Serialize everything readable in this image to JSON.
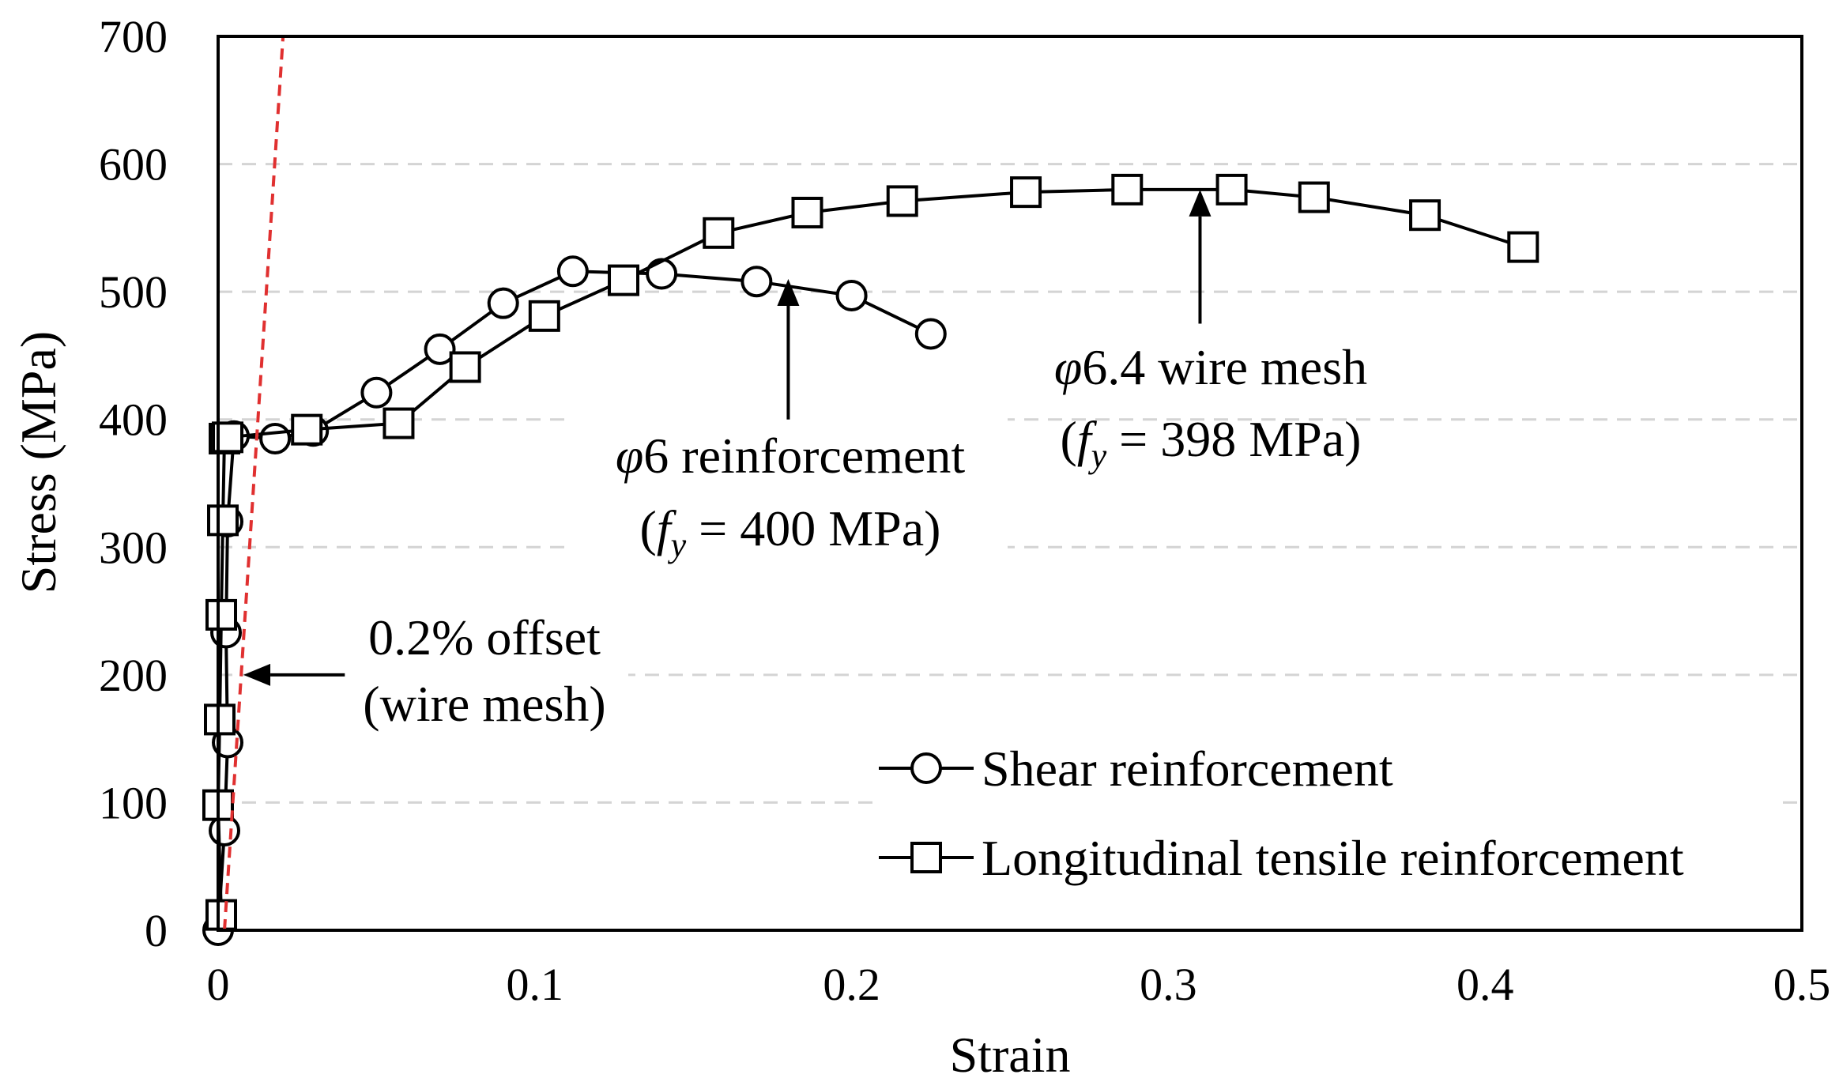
{
  "chart_data": {
    "type": "line",
    "xlabel": "Strain",
    "ylabel": "Stress (MPa)",
    "xlim": [
      0,
      0.5
    ],
    "ylim": [
      0,
      700
    ],
    "x_ticks": [
      0,
      0.1,
      0.2,
      0.3,
      0.4,
      0.5
    ],
    "x_tick_labels": [
      "0",
      "0.1",
      "0.2",
      "0.3",
      "0.4",
      "0.5"
    ],
    "y_ticks": [
      0,
      100,
      200,
      300,
      400,
      500,
      600,
      700
    ],
    "y_tick_labels": [
      "0",
      "100",
      "200",
      "300",
      "400",
      "500",
      "600",
      "700"
    ],
    "grid": "horizontal dashed",
    "legend_position": "bottom-right",
    "series": [
      {
        "name": "Shear reinforcement",
        "marker": "circle",
        "color": "#000000",
        "x": [
          0,
          0.002,
          0.003,
          0.0025,
          0.003,
          0.005,
          0.018,
          0.03,
          0.05,
          0.07,
          0.09,
          0.112,
          0.14,
          0.17,
          0.2,
          0.225
        ],
        "y": [
          0,
          78,
          147,
          233,
          320,
          387,
          385,
          391,
          421,
          455,
          491,
          516,
          514,
          508,
          497,
          467
        ]
      },
      {
        "name": "Longitudinal tensile reinforcement",
        "marker": "square",
        "color": "#000000",
        "x": [
          0.001,
          0.0,
          0.0005,
          0.001,
          0.0015,
          0.002,
          0.003,
          0.028,
          0.057,
          0.078,
          0.103,
          0.128,
          0.158,
          0.186,
          0.216,
          0.255,
          0.287,
          0.32,
          0.346,
          0.381,
          0.412
        ],
        "y": [
          12,
          98,
          165,
          247,
          321,
          385,
          386,
          392,
          397,
          441,
          481,
          509,
          546,
          562,
          571,
          578,
          580,
          580,
          574,
          560,
          535
        ]
      }
    ],
    "offset_line": {
      "label": "0.2% offset",
      "x": [
        0.002,
        0.0205
      ],
      "y": [
        0,
        700
      ],
      "color": "#e03030"
    },
    "annotations": [
      {
        "id": "phi6",
        "symbol": "φ",
        "line1": "6 reinforcement",
        "paren_open": "(",
        "f": "f",
        "sub": "y",
        "rest": " = 400 MPa)",
        "arrow_x": 0.18,
        "arrow_from_y": 400,
        "arrow_to_y": 510
      },
      {
        "id": "phi64",
        "symbol": "φ",
        "line1": "6.4 wire mesh",
        "paren_open": "(",
        "f": "f",
        "sub": "y",
        "rest": " = 398 MPa)",
        "arrow_x": 0.31,
        "arrow_from_y": 475,
        "arrow_to_y": 580
      },
      {
        "id": "offset",
        "line1": "0.2% offset",
        "line2": "(wire mesh)",
        "arrow_from_x": 0.04,
        "arrow_to_x": 0.008,
        "arrow_y": 200
      }
    ]
  }
}
